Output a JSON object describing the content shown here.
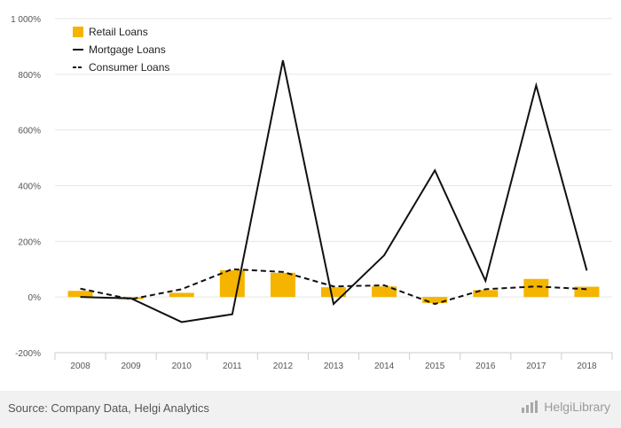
{
  "chart_data": {
    "type": "bar",
    "categories": [
      "2008",
      "2009",
      "2010",
      "2011",
      "2012",
      "2013",
      "2014",
      "2015",
      "2016",
      "2017",
      "2018"
    ],
    "series": [
      {
        "name": "Retail Loans",
        "type": "bar",
        "color": "#f5b400",
        "values": [
          22,
          -8,
          15,
          96,
          87,
          35,
          38,
          -22,
          25,
          65,
          37
        ]
      },
      {
        "name": "Mortgage Loans",
        "type": "line",
        "style": "solid",
        "color": "#111111",
        "values": [
          0,
          -5,
          -90,
          -62,
          850,
          -25,
          150,
          455,
          58,
          760,
          95
        ]
      },
      {
        "name": "Consumer Loans",
        "type": "line",
        "style": "dashed",
        "color": "#111111",
        "values": [
          30,
          -8,
          28,
          100,
          90,
          38,
          42,
          -25,
          28,
          38,
          28
        ]
      }
    ],
    "y_ticks": [
      "-200%",
      "0%",
      "200%",
      "400%",
      "600%",
      "800%",
      "1 000%"
    ],
    "y_tick_values": [
      -200,
      0,
      200,
      400,
      600,
      800,
      1000
    ],
    "ylim": [
      -200,
      1000
    ],
    "grid": true,
    "legend_position": "top-left"
  },
  "footer": {
    "source": "Source: Company Data, Helgi Analytics",
    "brand": "HelgiLibrary",
    "brand_icon": "helgi-logo-icon"
  }
}
